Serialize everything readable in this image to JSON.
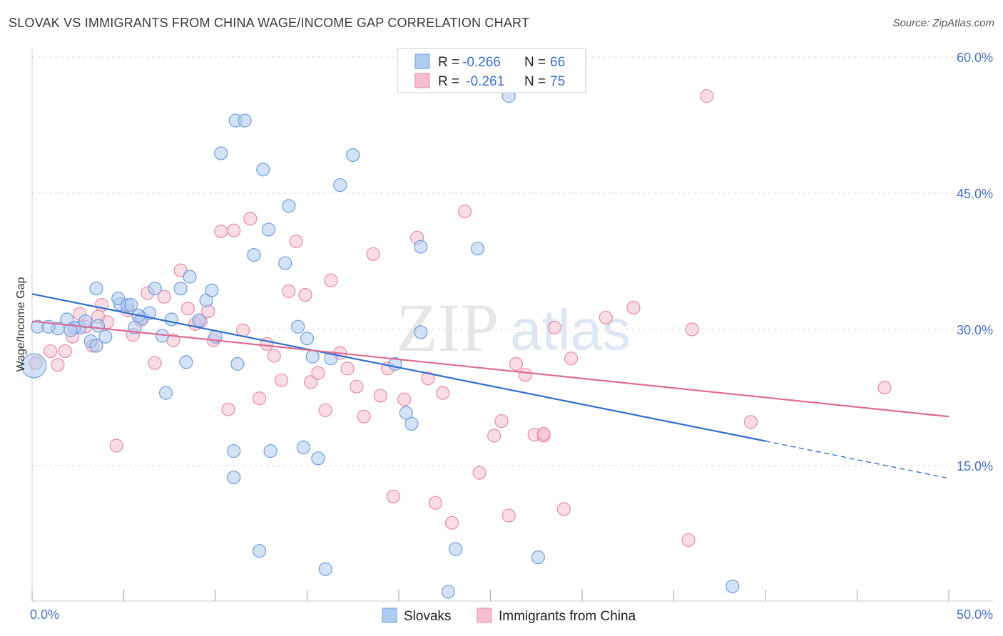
{
  "title": "SLOVAK VS IMMIGRANTS FROM CHINA WAGE/INCOME GAP CORRELATION CHART",
  "source": "Source: ZipAtlas.com",
  "watermark": {
    "zip": "ZIP",
    "atlas": "atlas"
  },
  "colors": {
    "blue_fill": "#aecbf0",
    "blue_stroke": "#6d9fdc",
    "blue_line": "#2f6fd0",
    "pink_fill": "#f6bfd0",
    "pink_stroke": "#e88aa8",
    "pink_line": "#e06a93",
    "grid": "#d9d9d9",
    "tick_text": "#4472c4"
  },
  "legend": {
    "rows": [
      {
        "r_label": "R = ",
        "r_value": "-0.266",
        "n_label": "N = ",
        "n_value": "66"
      },
      {
        "r_label": "R = ",
        "r_value": " -0.261",
        "n_label": "N = ",
        "n_value": "75"
      }
    ]
  },
  "chart_data": {
    "type": "scatter",
    "title": "SLOVAK VS IMMIGRANTS FROM CHINA WAGE/INCOME GAP CORRELATION CHART",
    "xlabel": "",
    "ylabel": "Wage/Income Gap",
    "xlim": [
      0,
      50
    ],
    "ylim": [
      0,
      60
    ],
    "x_tick_labels": [
      "0.0%",
      "50.0%"
    ],
    "y_ticks": [
      15,
      30,
      45,
      60
    ],
    "y_tick_labels": [
      "15.0%",
      "30.0%",
      "45.0%",
      "60.0%"
    ],
    "grid": true,
    "legend_position": "top-center",
    "series": [
      {
        "name": "Slovaks",
        "r": -0.266,
        "n": 66,
        "trend": {
          "x0": 0,
          "y0": 33.9,
          "x1": 40,
          "y1": 17.7,
          "dashed_to_x": 50,
          "dashed_to_y": 13.6
        },
        "points": [
          [
            0.3,
            30.3
          ],
          [
            1.4,
            30.1
          ],
          [
            1.9,
            31.1
          ],
          [
            2.6,
            30.2
          ],
          [
            3.6,
            30.4
          ],
          [
            3.2,
            28.7
          ],
          [
            3.5,
            28.2
          ],
          [
            2.3,
            30.2
          ],
          [
            3.5,
            34.5
          ],
          [
            4.8,
            32.8
          ],
          [
            4.7,
            33.4
          ],
          [
            5.2,
            32.7
          ],
          [
            5.4,
            32.7
          ],
          [
            4.0,
            29.2
          ],
          [
            5.6,
            30.2
          ],
          [
            6.0,
            31.2
          ],
          [
            6.4,
            31.8
          ],
          [
            6.7,
            34.5
          ],
          [
            7.1,
            29.3
          ],
          [
            7.3,
            23.0
          ],
          [
            7.6,
            31.1
          ],
          [
            8.1,
            34.5
          ],
          [
            8.4,
            26.4
          ],
          [
            8.6,
            35.8
          ],
          [
            9.1,
            31.0
          ],
          [
            9.5,
            33.2
          ],
          [
            9.8,
            34.3
          ],
          [
            10.0,
            29.2
          ],
          [
            10.3,
            49.4
          ],
          [
            11.0,
            16.6
          ],
          [
            11.2,
            26.2
          ],
          [
            11.0,
            13.7
          ],
          [
            11.1,
            53.0
          ],
          [
            11.6,
            53.0
          ],
          [
            12.1,
            38.2
          ],
          [
            12.4,
            5.6
          ],
          [
            12.6,
            47.6
          ],
          [
            12.9,
            41.0
          ],
          [
            13.0,
            16.6
          ],
          [
            13.8,
            37.3
          ],
          [
            14.0,
            43.6
          ],
          [
            14.5,
            30.3
          ],
          [
            14.8,
            17.0
          ],
          [
            15.0,
            29.0
          ],
          [
            15.3,
            27.0
          ],
          [
            15.6,
            15.8
          ],
          [
            16.0,
            3.6
          ],
          [
            16.3,
            26.8
          ],
          [
            16.8,
            45.9
          ],
          [
            17.5,
            49.2
          ],
          [
            19.8,
            26.2
          ],
          [
            20.4,
            20.8
          ],
          [
            20.7,
            19.6
          ],
          [
            21.2,
            29.7
          ],
          [
            21.2,
            39.1
          ],
          [
            22.7,
            1.1
          ],
          [
            23.1,
            5.8
          ],
          [
            24.3,
            38.9
          ],
          [
            26.0,
            55.7
          ],
          [
            27.6,
            4.9
          ],
          [
            38.2,
            1.7
          ],
          [
            0.1,
            26.0
          ],
          [
            0.9,
            30.3
          ],
          [
            2.1,
            29.9
          ],
          [
            5.8,
            31.5
          ],
          [
            2.9,
            30.9
          ]
        ]
      },
      {
        "name": "Immigrants from China",
        "r": -0.261,
        "n": 75,
        "trend": {
          "x0": 0,
          "y0": 30.9,
          "x1": 50,
          "y1": 20.4
        },
        "points": [
          [
            0.2,
            26.3
          ],
          [
            1.0,
            27.6
          ],
          [
            1.4,
            26.1
          ],
          [
            1.8,
            27.6
          ],
          [
            2.2,
            29.2
          ],
          [
            2.6,
            31.7
          ],
          [
            2.9,
            30.3
          ],
          [
            3.3,
            28.2
          ],
          [
            3.8,
            32.7
          ],
          [
            4.1,
            30.8
          ],
          [
            4.6,
            17.2
          ],
          [
            5.2,
            32.1
          ],
          [
            5.5,
            29.4
          ],
          [
            5.9,
            31.0
          ],
          [
            6.3,
            34.0
          ],
          [
            6.7,
            26.3
          ],
          [
            7.2,
            33.6
          ],
          [
            7.7,
            28.8
          ],
          [
            8.1,
            36.5
          ],
          [
            8.5,
            32.3
          ],
          [
            8.9,
            30.6
          ],
          [
            9.2,
            30.9
          ],
          [
            9.6,
            32.0
          ],
          [
            9.9,
            28.8
          ],
          [
            10.3,
            40.8
          ],
          [
            10.7,
            21.2
          ],
          [
            11.0,
            40.9
          ],
          [
            11.5,
            29.9
          ],
          [
            11.9,
            42.2
          ],
          [
            12.4,
            22.4
          ],
          [
            12.8,
            28.4
          ],
          [
            13.2,
            27.1
          ],
          [
            13.6,
            24.4
          ],
          [
            14.0,
            34.2
          ],
          [
            14.4,
            39.7
          ],
          [
            14.9,
            33.8
          ],
          [
            15.2,
            24.2
          ],
          [
            15.6,
            25.2
          ],
          [
            16.0,
            21.1
          ],
          [
            16.3,
            35.4
          ],
          [
            16.8,
            27.4
          ],
          [
            17.2,
            25.7
          ],
          [
            17.7,
            23.7
          ],
          [
            18.1,
            20.4
          ],
          [
            18.6,
            38.3
          ],
          [
            19.0,
            22.7
          ],
          [
            19.4,
            25.7
          ],
          [
            19.7,
            11.6
          ],
          [
            20.3,
            22.3
          ],
          [
            21.0,
            40.1
          ],
          [
            21.6,
            24.6
          ],
          [
            22.0,
            10.9
          ],
          [
            22.4,
            23.0
          ],
          [
            22.9,
            8.7
          ],
          [
            23.6,
            43.0
          ],
          [
            24.4,
            14.2
          ],
          [
            25.2,
            18.3
          ],
          [
            25.6,
            19.9
          ],
          [
            26.0,
            9.5
          ],
          [
            26.4,
            26.2
          ],
          [
            26.9,
            25.0
          ],
          [
            27.4,
            18.4
          ],
          [
            27.9,
            18.3
          ],
          [
            28.5,
            30.2
          ],
          [
            29.0,
            10.2
          ],
          [
            29.4,
            26.8
          ],
          [
            31.3,
            31.3
          ],
          [
            32.8,
            32.4
          ],
          [
            35.8,
            6.8
          ],
          [
            36.0,
            30.0
          ],
          [
            36.8,
            55.7
          ],
          [
            39.2,
            19.8
          ],
          [
            46.5,
            23.6
          ],
          [
            27.9,
            18.5
          ],
          [
            3.6,
            31.4
          ]
        ]
      }
    ]
  }
}
